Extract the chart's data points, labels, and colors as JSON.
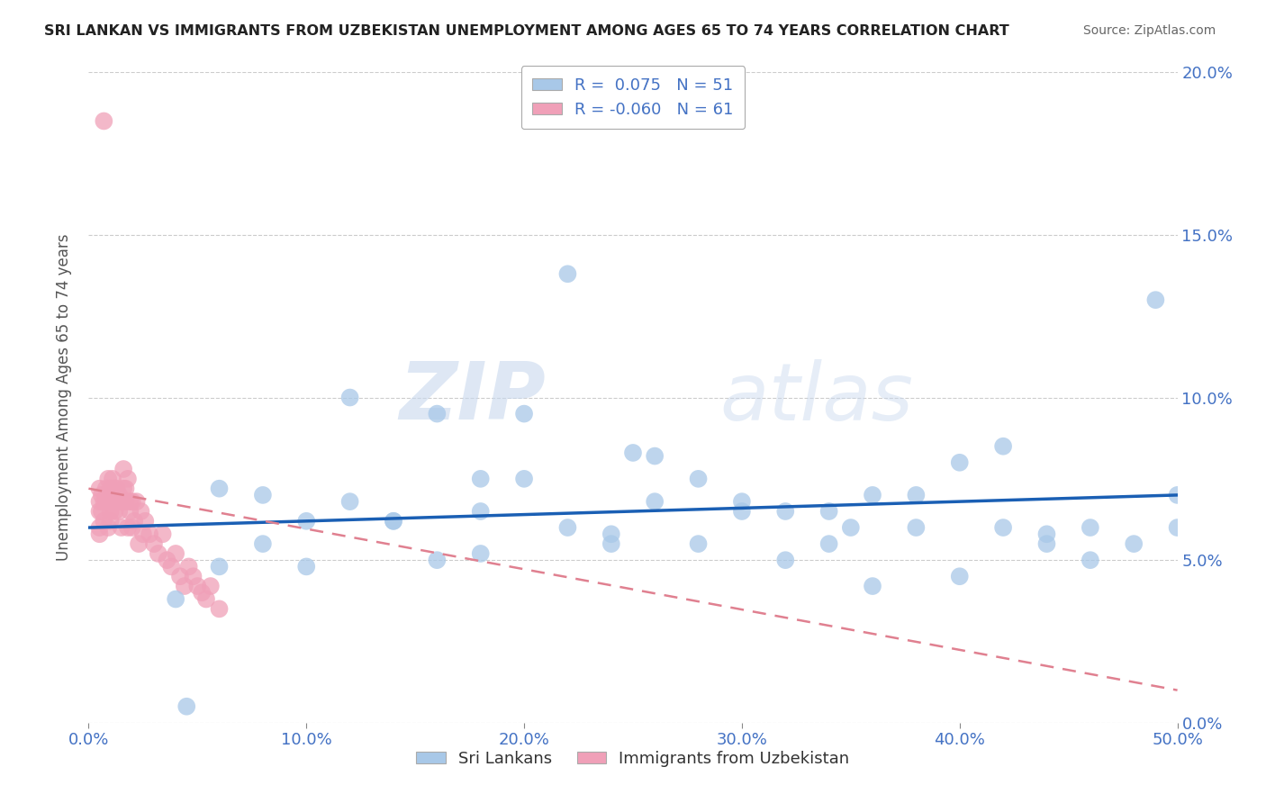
{
  "title": "SRI LANKAN VS IMMIGRANTS FROM UZBEKISTAN UNEMPLOYMENT AMONG AGES 65 TO 74 YEARS CORRELATION CHART",
  "source": "Source: ZipAtlas.com",
  "ylabel": "Unemployment Among Ages 65 to 74 years",
  "r_blue": 0.075,
  "n_blue": 51,
  "r_pink": -0.06,
  "n_pink": 61,
  "blue_color": "#a8c8e8",
  "pink_color": "#f0a0b8",
  "blue_line_color": "#1a5fb4",
  "pink_line_color": "#e08090",
  "watermark_zip": "ZIP",
  "watermark_atlas": "atlas",
  "xlim": [
    0.0,
    0.5
  ],
  "ylim": [
    0.0,
    0.2
  ],
  "blue_scatter_x": [
    0.045,
    0.22,
    0.14,
    0.1,
    0.16,
    0.2,
    0.25,
    0.18,
    0.3,
    0.28,
    0.32,
    0.35,
    0.38,
    0.42,
    0.46,
    0.49,
    0.5,
    0.44,
    0.4,
    0.36,
    0.12,
    0.08,
    0.06,
    0.26,
    0.34,
    0.22,
    0.18,
    0.14,
    0.3,
    0.24,
    0.38,
    0.44,
    0.48,
    0.1,
    0.16,
    0.2,
    0.28,
    0.32,
    0.4,
    0.46,
    0.5,
    0.08,
    0.12,
    0.26,
    0.34,
    0.42,
    0.06,
    0.18,
    0.24,
    0.36,
    0.04
  ],
  "blue_scatter_y": [
    0.005,
    0.138,
    0.062,
    0.062,
    0.095,
    0.095,
    0.083,
    0.075,
    0.065,
    0.075,
    0.065,
    0.06,
    0.07,
    0.085,
    0.06,
    0.13,
    0.06,
    0.055,
    0.08,
    0.07,
    0.1,
    0.07,
    0.072,
    0.068,
    0.065,
    0.06,
    0.065,
    0.062,
    0.068,
    0.055,
    0.06,
    0.058,
    0.055,
    0.048,
    0.05,
    0.075,
    0.055,
    0.05,
    0.045,
    0.05,
    0.07,
    0.055,
    0.068,
    0.082,
    0.055,
    0.06,
    0.048,
    0.052,
    0.058,
    0.042,
    0.038
  ],
  "pink_scatter_x": [
    0.007,
    0.005,
    0.005,
    0.005,
    0.005,
    0.005,
    0.006,
    0.006,
    0.007,
    0.007,
    0.008,
    0.008,
    0.009,
    0.009,
    0.01,
    0.01,
    0.01,
    0.01,
    0.01,
    0.011,
    0.011,
    0.012,
    0.012,
    0.013,
    0.013,
    0.014,
    0.014,
    0.015,
    0.015,
    0.016,
    0.016,
    0.017,
    0.017,
    0.018,
    0.018,
    0.019,
    0.019,
    0.02,
    0.02,
    0.021,
    0.022,
    0.023,
    0.024,
    0.025,
    0.026,
    0.028,
    0.03,
    0.032,
    0.034,
    0.036,
    0.038,
    0.04,
    0.042,
    0.044,
    0.046,
    0.048,
    0.05,
    0.052,
    0.054,
    0.056,
    0.06
  ],
  "pink_scatter_y": [
    0.185,
    0.068,
    0.072,
    0.065,
    0.06,
    0.058,
    0.07,
    0.065,
    0.068,
    0.062,
    0.072,
    0.068,
    0.075,
    0.06,
    0.068,
    0.072,
    0.065,
    0.07,
    0.062,
    0.075,
    0.068,
    0.072,
    0.065,
    0.068,
    0.072,
    0.065,
    0.07,
    0.068,
    0.06,
    0.072,
    0.078,
    0.068,
    0.072,
    0.06,
    0.075,
    0.065,
    0.068,
    0.06,
    0.068,
    0.062,
    0.068,
    0.055,
    0.065,
    0.058,
    0.062,
    0.058,
    0.055,
    0.052,
    0.058,
    0.05,
    0.048,
    0.052,
    0.045,
    0.042,
    0.048,
    0.045,
    0.042,
    0.04,
    0.038,
    0.042,
    0.035
  ],
  "blue_line_x0": 0.0,
  "blue_line_x1": 0.5,
  "blue_line_y0": 0.06,
  "blue_line_y1": 0.07,
  "pink_line_x0": 0.0,
  "pink_line_x1": 0.5,
  "pink_line_y0": 0.072,
  "pink_line_y1": 0.01
}
